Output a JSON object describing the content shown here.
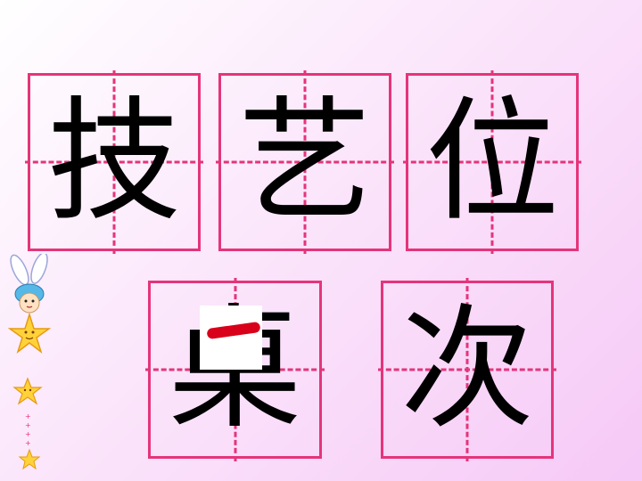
{
  "characters": [
    "技",
    "艺",
    "位",
    "桌",
    "次"
  ],
  "colors": {
    "grid": "#e5347a",
    "text": "#000000",
    "highlight_stroke": "#d8001a"
  },
  "decoration": {
    "icon": "bunny-with-stars-icon"
  }
}
